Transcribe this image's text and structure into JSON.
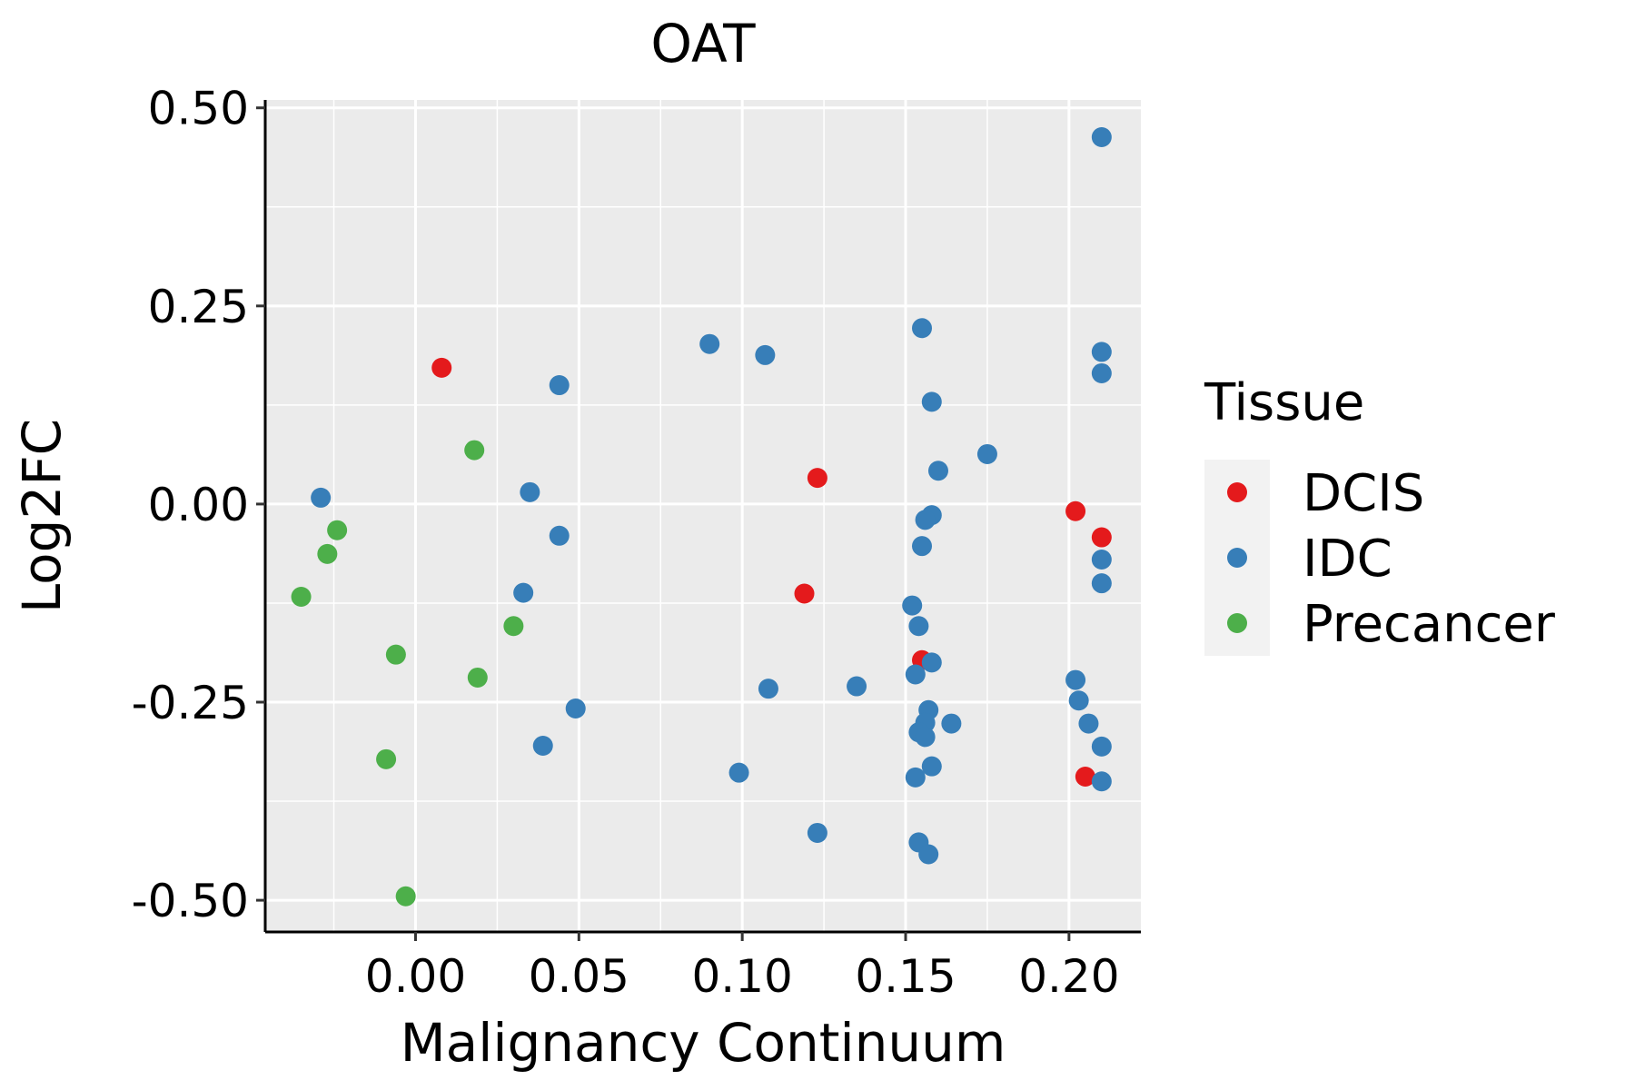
{
  "chart_data": {
    "type": "scatter",
    "title": "OAT",
    "xlabel": "Malignancy Continuum",
    "ylabel": "Log2FC",
    "xlim": [
      -0.046,
      0.222
    ],
    "ylim": [
      -0.54,
      0.51
    ],
    "x_ticks": [
      0.0,
      0.05,
      0.1,
      0.15,
      0.2
    ],
    "x_tick_labels": [
      "0.00",
      "0.05",
      "0.10",
      "0.15",
      "0.20"
    ],
    "y_ticks": [
      0.5,
      0.25,
      0.0,
      -0.25,
      -0.5
    ],
    "y_tick_labels": [
      "0.50",
      "0.25",
      "0.00",
      "-0.25",
      "-0.50"
    ],
    "grid": true,
    "legend_position": "right",
    "legend": {
      "title": "Tissue",
      "entries": [
        {
          "name": "DCIS",
          "color": "#E41A1C"
        },
        {
          "name": "IDC",
          "color": "#377EB8"
        },
        {
          "name": "Precancer",
          "color": "#4DAF4A"
        }
      ]
    },
    "series": [
      {
        "name": "DCIS",
        "color": "#E41A1C",
        "points": [
          [
            0.008,
            0.172
          ],
          [
            0.123,
            0.033
          ],
          [
            0.119,
            -0.113
          ],
          [
            0.155,
            -0.197
          ],
          [
            0.202,
            -0.009
          ],
          [
            0.21,
            -0.042
          ],
          [
            0.205,
            -0.344
          ]
        ]
      },
      {
        "name": "IDC",
        "color": "#377EB8",
        "points": [
          [
            0.21,
            0.463
          ],
          [
            0.155,
            0.222
          ],
          [
            0.21,
            0.192
          ],
          [
            0.21,
            0.165
          ],
          [
            0.09,
            0.202
          ],
          [
            0.107,
            0.188
          ],
          [
            0.044,
            0.15
          ],
          [
            0.158,
            0.129
          ],
          [
            0.175,
            0.063
          ],
          [
            0.16,
            0.042
          ],
          [
            -0.029,
            0.008
          ],
          [
            0.035,
            0.015
          ],
          [
            0.158,
            -0.014
          ],
          [
            0.156,
            -0.02
          ],
          [
            0.155,
            -0.053
          ],
          [
            0.044,
            -0.04
          ],
          [
            0.21,
            -0.07
          ],
          [
            0.21,
            -0.1
          ],
          [
            0.033,
            -0.112
          ],
          [
            0.152,
            -0.128
          ],
          [
            0.154,
            -0.154
          ],
          [
            0.158,
            -0.2
          ],
          [
            0.153,
            -0.215
          ],
          [
            0.108,
            -0.233
          ],
          [
            0.135,
            -0.23
          ],
          [
            0.202,
            -0.222
          ],
          [
            0.203,
            -0.248
          ],
          [
            0.157,
            -0.26
          ],
          [
            0.049,
            -0.258
          ],
          [
            0.156,
            -0.276
          ],
          [
            0.164,
            -0.277
          ],
          [
            0.206,
            -0.277
          ],
          [
            0.154,
            -0.288
          ],
          [
            0.156,
            -0.294
          ],
          [
            0.039,
            -0.305
          ],
          [
            0.21,
            -0.306
          ],
          [
            0.158,
            -0.331
          ],
          [
            0.099,
            -0.339
          ],
          [
            0.153,
            -0.345
          ],
          [
            0.21,
            -0.35
          ],
          [
            0.123,
            -0.415
          ],
          [
            0.154,
            -0.427
          ],
          [
            0.157,
            -0.442
          ]
        ]
      },
      {
        "name": "Precancer",
        "color": "#4DAF4A",
        "points": [
          [
            0.018,
            0.068
          ],
          [
            -0.024,
            -0.033
          ],
          [
            -0.027,
            -0.063
          ],
          [
            -0.035,
            -0.117
          ],
          [
            0.03,
            -0.154
          ],
          [
            -0.006,
            -0.19
          ],
          [
            0.019,
            -0.219
          ],
          [
            -0.009,
            -0.322
          ],
          [
            -0.003,
            -0.495
          ]
        ]
      }
    ]
  }
}
